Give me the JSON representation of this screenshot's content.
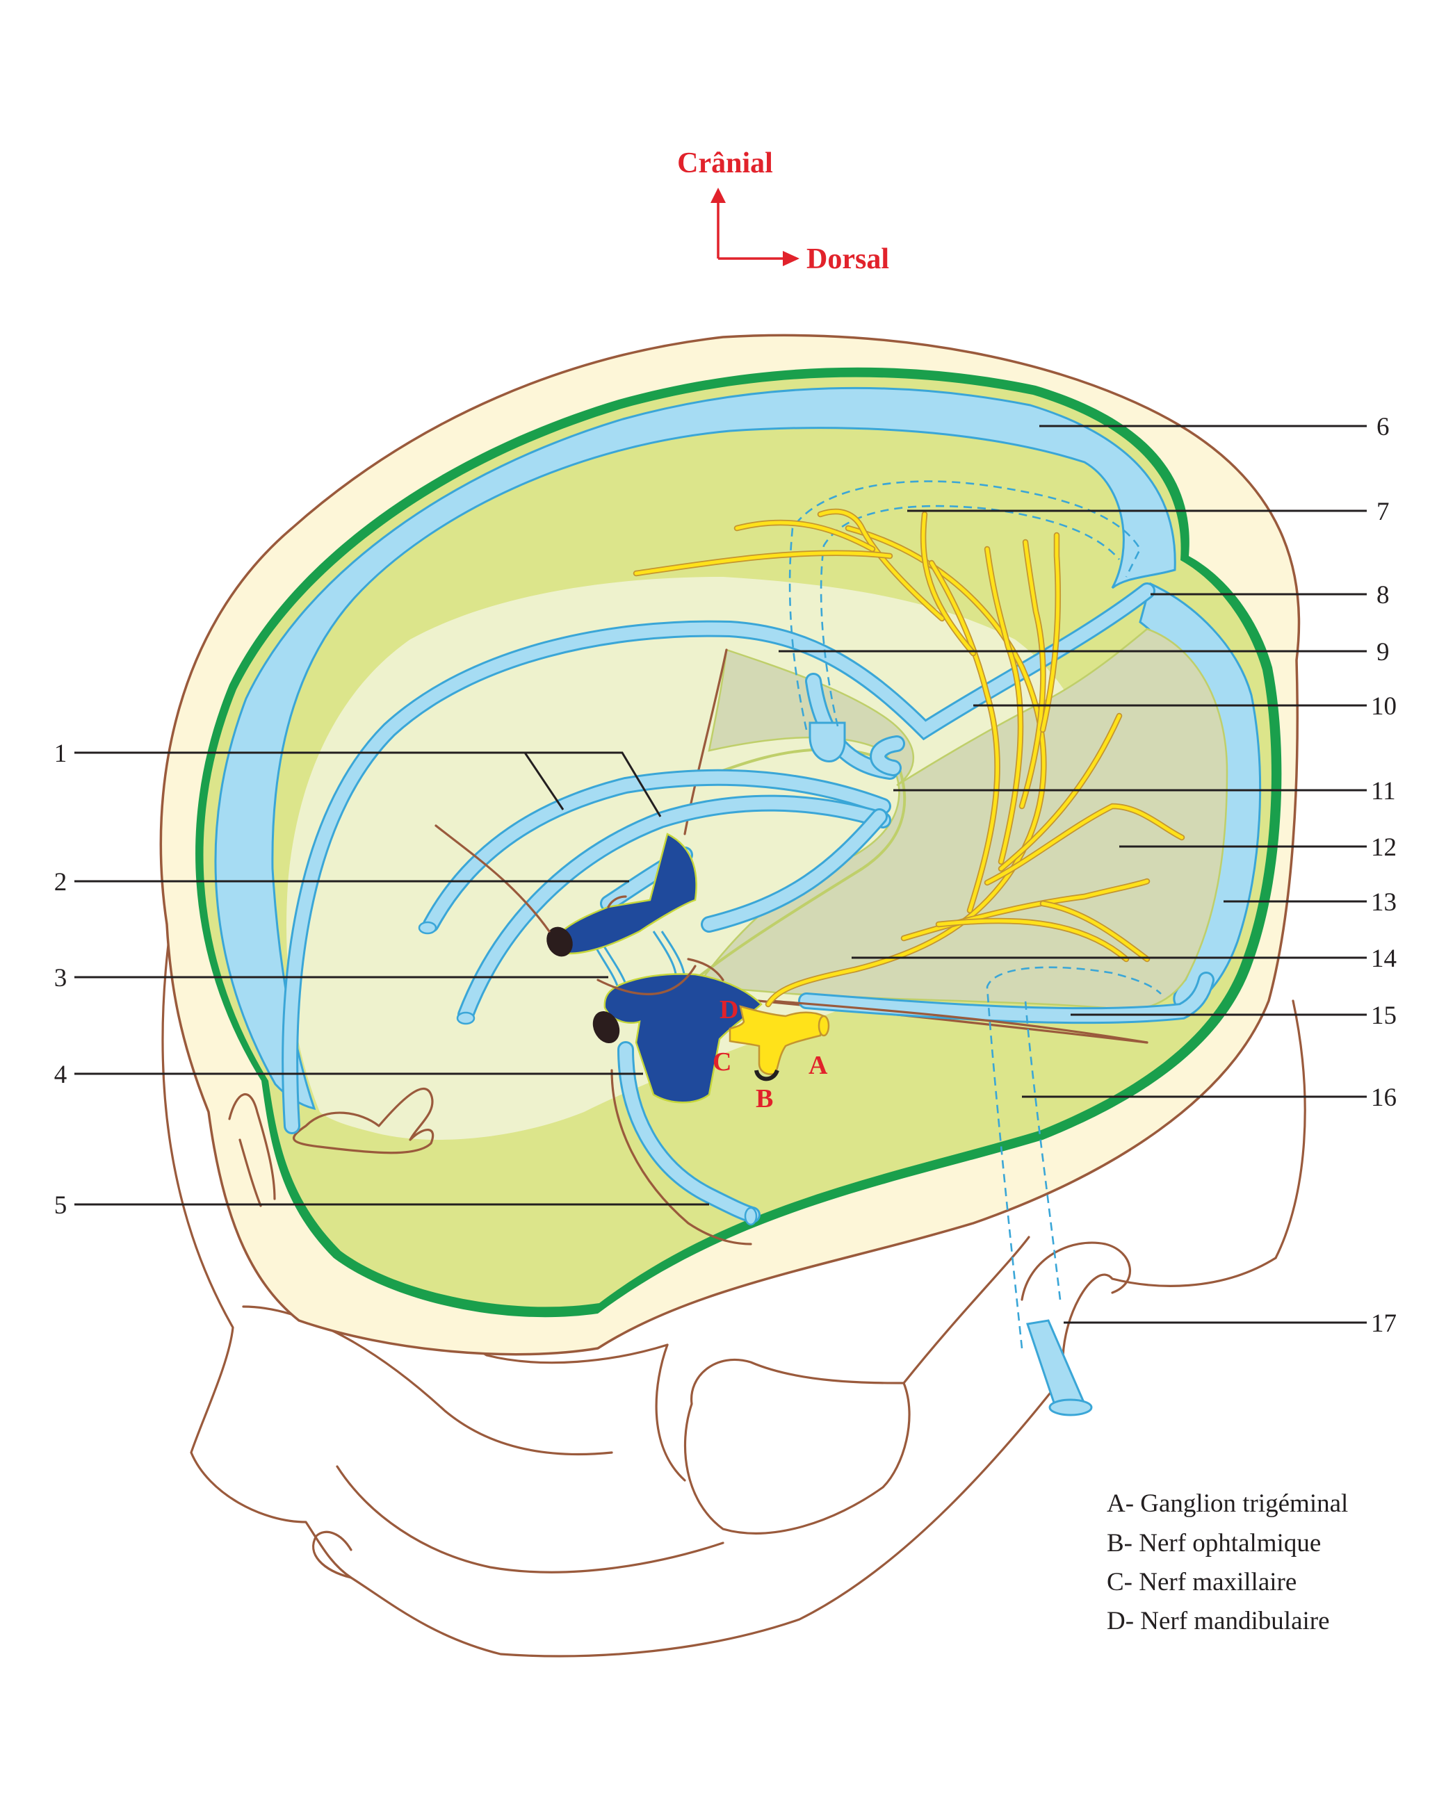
{
  "orientation": {
    "up": "Crânial",
    "right": "Dorsal"
  },
  "labels_left": [
    "1",
    "2",
    "3",
    "4",
    "5"
  ],
  "labels_right": [
    "6",
    "7",
    "8",
    "9",
    "10",
    "11",
    "12",
    "13",
    "14",
    "15",
    "16",
    "17"
  ],
  "ganglion_letters": [
    "A",
    "B",
    "C",
    "D"
  ],
  "legend": [
    "A- Ganglion trigéminal",
    "B- Nerf ophtalmique",
    "C- Nerf maxillaire",
    "D- Nerf mandibulaire"
  ],
  "colors": {
    "bone": "#fdf6d8",
    "outline": "#9a5a3c",
    "dura_green": "#1a9f4c",
    "sinus_blue": "#a6dcf3",
    "sinus_edge": "#3aa6d7",
    "brain_olive": "#dce58b",
    "brain_pale": "#eef2cd",
    "tentorium": "#d3d9b4",
    "cavernous_dark_blue": "#1f4a9c",
    "nerve_yellow": "#ffe21a",
    "annotation_red": "#e1222b"
  }
}
